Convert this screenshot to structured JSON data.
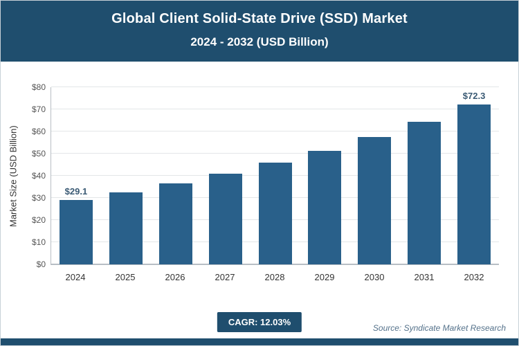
{
  "header": {
    "title_line1": "Global Client Solid-State Drive (SSD) Market",
    "title_line2": "2024 - 2032 (USD Billion)"
  },
  "chart_data": {
    "type": "bar",
    "categories": [
      "2024",
      "2025",
      "2026",
      "2027",
      "2028",
      "2029",
      "2030",
      "2031",
      "2032"
    ],
    "values": [
      29.1,
      32.6,
      36.5,
      40.9,
      45.8,
      51.3,
      57.5,
      64.3,
      72.3
    ],
    "labeled_points": {
      "first": "$29.1",
      "last": "$72.3"
    },
    "title": "Global Client Solid-State Drive (SSD) Market 2024 - 2032 (USD Billion)",
    "xlabel": "",
    "ylabel": "Market Size (USD Billion)",
    "ylim": [
      0,
      80
    ],
    "ytick_step": 10,
    "ytick_prefix": "$",
    "grid": "horizontal",
    "legend": "none",
    "bar_color": "#29608a"
  },
  "footer": {
    "cagr_label": "CAGR: 12.03%",
    "source": "Source: Syndicate Market Research"
  },
  "colors": {
    "header_bg": "#1f4e6e",
    "bar": "#29608a",
    "badge_bg": "#1f4e6e",
    "gridline": "#e3e6e8"
  }
}
